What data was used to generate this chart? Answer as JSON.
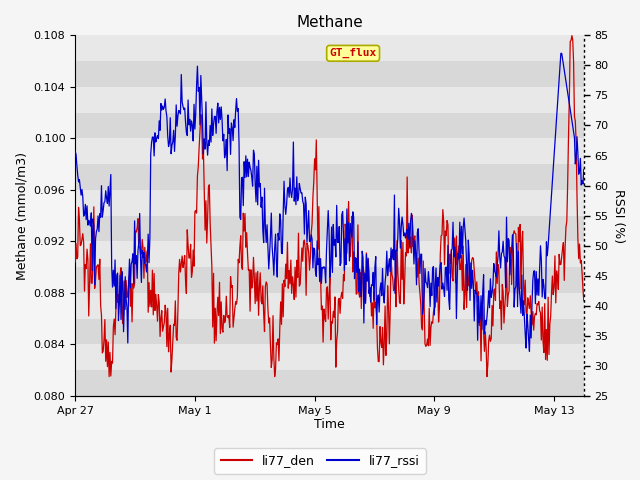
{
  "title": "Methane",
  "xlabel": "Time",
  "ylabel_left": "Methane (mmol/m3)",
  "ylabel_right": "RSSI (%)",
  "ylim_left": [
    0.08,
    0.108
  ],
  "ylim_right": [
    25,
    85
  ],
  "yticks_left": [
    0.08,
    0.082,
    0.084,
    0.086,
    0.088,
    0.09,
    0.092,
    0.094,
    0.096,
    0.098,
    0.1,
    0.102,
    0.104,
    0.106,
    0.108
  ],
  "yticks_right": [
    25,
    30,
    35,
    40,
    45,
    50,
    55,
    60,
    65,
    70,
    75,
    80,
    85
  ],
  "color_red": "#cc0000",
  "color_blue": "#0000cc",
  "fig_bg_color": "#f5f5f5",
  "plot_bg_color": "#e8e8e8",
  "band_dark": "#d8d8d8",
  "band_light": "#e8e8e8",
  "label_box_color": "#ffff99",
  "label_box_edge": "#aaaa00",
  "label_text": "GT_flux",
  "label_text_color": "#cc0000",
  "legend_red": "li77_den",
  "legend_blue": "li77_rssi",
  "xtick_labels": [
    "Apr 27",
    "May 1",
    "May 5",
    "May 9",
    "May 13"
  ],
  "xtick_days": [
    0,
    4,
    8,
    12,
    16
  ],
  "total_days": 17
}
